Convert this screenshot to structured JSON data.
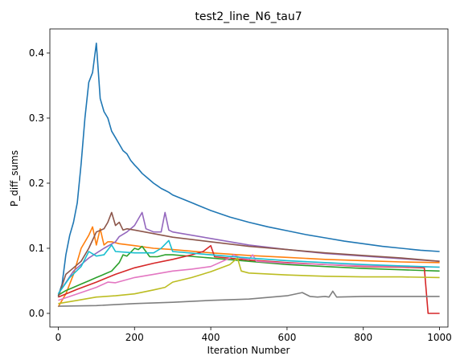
{
  "chart_data": {
    "type": "line",
    "title": "test2_line_N6_tau7",
    "xlabel": "Iteration Number",
    "ylabel": "P_diff_sums",
    "xlim": [
      -22,
      1022
    ],
    "ylim": [
      -0.021,
      0.437
    ],
    "xticks": [
      0,
      200,
      400,
      600,
      800,
      1000
    ],
    "yticks": [
      0.0,
      0.1,
      0.2,
      0.3,
      0.4
    ],
    "xtick_labels": [
      "0",
      "200",
      "400",
      "600",
      "800",
      "1000"
    ],
    "ytick_labels": [
      "0.0",
      "0.1",
      "0.2",
      "0.3",
      "0.4"
    ],
    "grid": false,
    "legend": "none",
    "series": [
      {
        "color": "#1f77b4",
        "points": [
          [
            0,
            0.027
          ],
          [
            10,
            0.045
          ],
          [
            20,
            0.09
          ],
          [
            30,
            0.12
          ],
          [
            40,
            0.14
          ],
          [
            50,
            0.17
          ],
          [
            60,
            0.23
          ],
          [
            70,
            0.3
          ],
          [
            80,
            0.355
          ],
          [
            90,
            0.37
          ],
          [
            100,
            0.415
          ],
          [
            110,
            0.33
          ],
          [
            120,
            0.31
          ],
          [
            130,
            0.3
          ],
          [
            140,
            0.28
          ],
          [
            150,
            0.27
          ],
          [
            160,
            0.26
          ],
          [
            170,
            0.25
          ],
          [
            180,
            0.245
          ],
          [
            190,
            0.235
          ],
          [
            200,
            0.228
          ],
          [
            210,
            0.222
          ],
          [
            220,
            0.215
          ],
          [
            230,
            0.21
          ],
          [
            240,
            0.205
          ],
          [
            250,
            0.2
          ],
          [
            260,
            0.196
          ],
          [
            270,
            0.192
          ],
          [
            280,
            0.189
          ],
          [
            290,
            0.186
          ],
          [
            300,
            0.182
          ],
          [
            350,
            0.17
          ],
          [
            400,
            0.158
          ],
          [
            450,
            0.148
          ],
          [
            500,
            0.14
          ],
          [
            550,
            0.133
          ],
          [
            600,
            0.127
          ],
          [
            650,
            0.121
          ],
          [
            700,
            0.116
          ],
          [
            750,
            0.111
          ],
          [
            800,
            0.107
          ],
          [
            850,
            0.103
          ],
          [
            900,
            0.1
          ],
          [
            950,
            0.097
          ],
          [
            1000,
            0.095
          ]
        ]
      },
      {
        "color": "#ff7f0e",
        "points": [
          [
            0,
            0.01
          ],
          [
            20,
            0.03
          ],
          [
            40,
            0.06
          ],
          [
            60,
            0.1
          ],
          [
            80,
            0.12
          ],
          [
            90,
            0.133
          ],
          [
            100,
            0.105
          ],
          [
            110,
            0.13
          ],
          [
            120,
            0.105
          ],
          [
            130,
            0.11
          ],
          [
            140,
            0.11
          ],
          [
            160,
            0.107
          ],
          [
            200,
            0.104
          ],
          [
            250,
            0.1
          ],
          [
            300,
            0.098
          ],
          [
            400,
            0.093
          ],
          [
            500,
            0.089
          ],
          [
            600,
            0.086
          ],
          [
            700,
            0.083
          ],
          [
            800,
            0.081
          ],
          [
            900,
            0.079
          ],
          [
            1000,
            0.078
          ]
        ]
      },
      {
        "color": "#2ca02c",
        "points": [
          [
            0,
            0.028
          ],
          [
            20,
            0.035
          ],
          [
            40,
            0.04
          ],
          [
            60,
            0.045
          ],
          [
            80,
            0.05
          ],
          [
            100,
            0.055
          ],
          [
            120,
            0.06
          ],
          [
            140,
            0.065
          ],
          [
            160,
            0.078
          ],
          [
            170,
            0.09
          ],
          [
            180,
            0.088
          ],
          [
            200,
            0.1
          ],
          [
            210,
            0.098
          ],
          [
            220,
            0.103
          ],
          [
            240,
            0.087
          ],
          [
            260,
            0.087
          ],
          [
            280,
            0.09
          ],
          [
            300,
            0.09
          ],
          [
            400,
            0.085
          ],
          [
            500,
            0.08
          ],
          [
            600,
            0.075
          ],
          [
            700,
            0.072
          ],
          [
            800,
            0.069
          ],
          [
            900,
            0.067
          ],
          [
            1000,
            0.065
          ]
        ]
      },
      {
        "color": "#d62728",
        "points": [
          [
            0,
            0.025
          ],
          [
            50,
            0.037
          ],
          [
            100,
            0.048
          ],
          [
            150,
            0.06
          ],
          [
            200,
            0.07
          ],
          [
            250,
            0.077
          ],
          [
            300,
            0.083
          ],
          [
            350,
            0.09
          ],
          [
            380,
            0.095
          ],
          [
            400,
            0.104
          ],
          [
            410,
            0.087
          ],
          [
            500,
            0.082
          ],
          [
            600,
            0.078
          ],
          [
            700,
            0.075
          ],
          [
            800,
            0.072
          ],
          [
            900,
            0.071
          ],
          [
            960,
            0.07
          ],
          [
            970,
            0.0
          ],
          [
            1000,
            0.0
          ]
        ]
      },
      {
        "color": "#9467bd",
        "points": [
          [
            0,
            0.03
          ],
          [
            40,
            0.065
          ],
          [
            80,
            0.085
          ],
          [
            120,
            0.1
          ],
          [
            150,
            0.11
          ],
          [
            160,
            0.118
          ],
          [
            180,
            0.125
          ],
          [
            200,
            0.135
          ],
          [
            220,
            0.155
          ],
          [
            230,
            0.13
          ],
          [
            250,
            0.125
          ],
          [
            270,
            0.125
          ],
          [
            280,
            0.155
          ],
          [
            290,
            0.128
          ],
          [
            300,
            0.125
          ],
          [
            400,
            0.115
          ],
          [
            500,
            0.105
          ],
          [
            600,
            0.098
          ],
          [
            700,
            0.092
          ],
          [
            800,
            0.088
          ],
          [
            900,
            0.084
          ],
          [
            1000,
            0.08
          ]
        ]
      },
      {
        "color": "#8c564b",
        "points": [
          [
            0,
            0.025
          ],
          [
            20,
            0.06
          ],
          [
            40,
            0.07
          ],
          [
            60,
            0.08
          ],
          [
            80,
            0.1
          ],
          [
            100,
            0.125
          ],
          [
            120,
            0.13
          ],
          [
            130,
            0.14
          ],
          [
            140,
            0.155
          ],
          [
            150,
            0.135
          ],
          [
            160,
            0.14
          ],
          [
            170,
            0.128
          ],
          [
            180,
            0.13
          ],
          [
            200,
            0.128
          ],
          [
            300,
            0.117
          ],
          [
            400,
            0.11
          ],
          [
            500,
            0.103
          ],
          [
            600,
            0.098
          ],
          [
            700,
            0.093
          ],
          [
            800,
            0.089
          ],
          [
            900,
            0.085
          ],
          [
            1000,
            0.08
          ]
        ]
      },
      {
        "color": "#e377c2",
        "points": [
          [
            0,
            0.02
          ],
          [
            50,
            0.03
          ],
          [
            100,
            0.04
          ],
          [
            130,
            0.048
          ],
          [
            150,
            0.047
          ],
          [
            200,
            0.055
          ],
          [
            250,
            0.06
          ],
          [
            300,
            0.065
          ],
          [
            350,
            0.068
          ],
          [
            400,
            0.072
          ],
          [
            450,
            0.085
          ],
          [
            460,
            0.09
          ],
          [
            480,
            0.085
          ],
          [
            500,
            0.083
          ],
          [
            510,
            0.09
          ],
          [
            520,
            0.08
          ],
          [
            600,
            0.077
          ],
          [
            700,
            0.075
          ],
          [
            800,
            0.073
          ],
          [
            900,
            0.072
          ],
          [
            1000,
            0.071
          ]
        ]
      },
      {
        "color": "#7f7f7f",
        "points": [
          [
            0,
            0.011
          ],
          [
            100,
            0.012
          ],
          [
            200,
            0.015
          ],
          [
            300,
            0.017
          ],
          [
            400,
            0.02
          ],
          [
            500,
            0.022
          ],
          [
            600,
            0.027
          ],
          [
            640,
            0.032
          ],
          [
            660,
            0.026
          ],
          [
            680,
            0.025
          ],
          [
            700,
            0.026
          ],
          [
            710,
            0.025
          ],
          [
            720,
            0.034
          ],
          [
            730,
            0.025
          ],
          [
            800,
            0.026
          ],
          [
            1000,
            0.026
          ]
        ]
      },
      {
        "color": "#bcbd22",
        "points": [
          [
            0,
            0.015
          ],
          [
            50,
            0.02
          ],
          [
            100,
            0.025
          ],
          [
            150,
            0.027
          ],
          [
            200,
            0.03
          ],
          [
            250,
            0.036
          ],
          [
            280,
            0.04
          ],
          [
            300,
            0.048
          ],
          [
            350,
            0.055
          ],
          [
            400,
            0.064
          ],
          [
            450,
            0.075
          ],
          [
            470,
            0.085
          ],
          [
            480,
            0.065
          ],
          [
            500,
            0.062
          ],
          [
            600,
            0.059
          ],
          [
            700,
            0.057
          ],
          [
            800,
            0.056
          ],
          [
            900,
            0.056
          ],
          [
            1000,
            0.055
          ]
        ]
      },
      {
        "color": "#17becf",
        "points": [
          [
            0,
            0.03
          ],
          [
            30,
            0.055
          ],
          [
            60,
            0.072
          ],
          [
            80,
            0.095
          ],
          [
            100,
            0.088
          ],
          [
            120,
            0.09
          ],
          [
            140,
            0.105
          ],
          [
            150,
            0.095
          ],
          [
            200,
            0.093
          ],
          [
            250,
            0.093
          ],
          [
            270,
            0.1
          ],
          [
            290,
            0.112
          ],
          [
            300,
            0.095
          ],
          [
            400,
            0.09
          ],
          [
            500,
            0.085
          ],
          [
            600,
            0.081
          ],
          [
            700,
            0.078
          ],
          [
            800,
            0.075
          ],
          [
            900,
            0.073
          ],
          [
            1000,
            0.071
          ]
        ]
      }
    ]
  }
}
